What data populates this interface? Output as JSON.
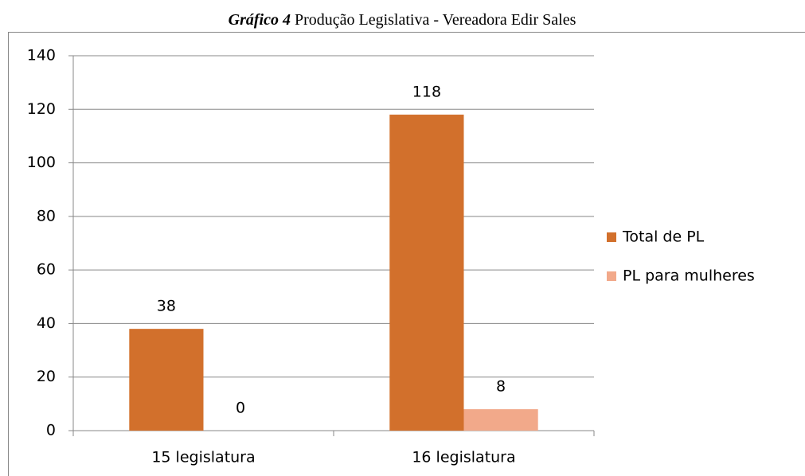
{
  "chart_data": {
    "type": "bar",
    "title_label": "Gráfico 4",
    "title": "Produção Legislativa - Vereadora Edir Sales",
    "categories": [
      "15 legislatura",
      "16 legislatura"
    ],
    "series": [
      {
        "name": "Total de PL",
        "color": "#d2702c",
        "values": [
          38,
          118
        ]
      },
      {
        "name": "PL para mulheres",
        "color": "#f2a98a",
        "values": [
          0,
          8
        ]
      }
    ],
    "ylim": [
      0,
      140
    ],
    "yticks": [
      0,
      20,
      40,
      60,
      80,
      100,
      120,
      140
    ],
    "grid": true,
    "legend": "right"
  }
}
